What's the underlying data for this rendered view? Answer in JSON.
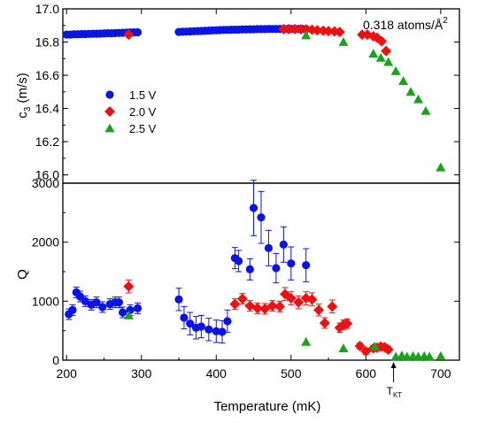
{
  "chart_data": [
    {
      "type": "scatter",
      "ylabel_main": "c",
      "ylabel_sub": "3",
      "ylabel_unit": " (m/s)",
      "ylim": [
        15.95,
        17.0
      ],
      "yticks": [
        "16.0",
        "16.2",
        "16.4",
        "16.6",
        "16.8",
        "17.0"
      ],
      "annotation": {
        "main": "0.318 atoms/Å",
        "sup": "2"
      },
      "legend_position": "middle-left",
      "series": [
        {
          "name": "1.5 V",
          "color": "#0a14e6",
          "marker": "circle",
          "points": [
            [
              200,
              16.845
            ],
            [
              205,
              16.845
            ],
            [
              210,
              16.847
            ],
            [
              215,
              16.847
            ],
            [
              220,
              16.848
            ],
            [
              225,
              16.848
            ],
            [
              230,
              16.849
            ],
            [
              235,
              16.85
            ],
            [
              240,
              16.85
            ],
            [
              245,
              16.851
            ],
            [
              250,
              16.852
            ],
            [
              255,
              16.853
            ],
            [
              260,
              16.853
            ],
            [
              265,
              16.854
            ],
            [
              270,
              16.855
            ],
            [
              275,
              16.856
            ],
            [
              280,
              16.857
            ],
            [
              285,
              16.858
            ],
            [
              290,
              16.858
            ],
            [
              295,
              16.859
            ],
            [
              350,
              16.861
            ],
            [
              355,
              16.862
            ],
            [
              360,
              16.863
            ],
            [
              365,
              16.864
            ],
            [
              370,
              16.865
            ],
            [
              375,
              16.866
            ],
            [
              380,
              16.867
            ],
            [
              385,
              16.868
            ],
            [
              390,
              16.869
            ],
            [
              395,
              16.87
            ],
            [
              400,
              16.871
            ],
            [
              405,
              16.872
            ],
            [
              410,
              16.873
            ],
            [
              415,
              16.873
            ],
            [
              420,
              16.874
            ],
            [
              425,
              16.875
            ],
            [
              430,
              16.875
            ],
            [
              435,
              16.876
            ],
            [
              440,
              16.876
            ],
            [
              445,
              16.877
            ],
            [
              450,
              16.877
            ],
            [
              455,
              16.878
            ],
            [
              460,
              16.878
            ],
            [
              465,
              16.878
            ],
            [
              470,
              16.879
            ],
            [
              475,
              16.879
            ],
            [
              480,
              16.879
            ],
            [
              485,
              16.879
            ],
            [
              490,
              16.879
            ],
            [
              495,
              16.879
            ],
            [
              500,
              16.879
            ],
            [
              505,
              16.879
            ],
            [
              510,
              16.879
            ],
            [
              515,
              16.879
            ],
            [
              520,
              16.878
            ]
          ]
        },
        {
          "name": "2.0 V",
          "color": "#ee1111",
          "marker": "diamond",
          "points": [
            [
              283,
              16.845
            ],
            [
              490,
              16.878
            ],
            [
              497,
              16.878
            ],
            [
              505,
              16.878
            ],
            [
              513,
              16.877
            ],
            [
              520,
              16.876
            ],
            [
              528,
              16.874
            ],
            [
              535,
              16.871
            ],
            [
              543,
              16.868
            ],
            [
              550,
              16.866
            ],
            [
              558,
              16.864
            ],
            [
              565,
              16.861
            ],
            [
              595,
              16.845
            ],
            [
              602,
              16.845
            ],
            [
              610,
              16.835
            ],
            [
              615,
              16.826
            ],
            [
              621,
              16.805
            ],
            [
              627,
              16.746
            ]
          ]
        },
        {
          "name": "2.5 V",
          "color": "#1aa31a",
          "marker": "triangle",
          "points": [
            [
              520,
              16.84
            ],
            [
              570,
              16.8
            ],
            [
              610,
              16.73
            ],
            [
              620,
              16.705
            ],
            [
              630,
              16.68
            ],
            [
              640,
              16.625
            ],
            [
              650,
              16.565
            ],
            [
              660,
              16.5
            ],
            [
              670,
              16.455
            ],
            [
              680,
              16.385
            ],
            [
              700,
              16.045
            ]
          ]
        }
      ]
    },
    {
      "type": "scatter",
      "ylabel": "Q",
      "xlabel": "Temperature (mK)",
      "xlim": [
        195,
        725
      ],
      "xticks": [
        "200",
        "300",
        "400",
        "500",
        "600",
        "700"
      ],
      "ylim": [
        0,
        3000
      ],
      "yticks": [
        "0",
        "1000",
        "2000",
        "3000"
      ],
      "marker_label": {
        "main": "T",
        "sub": "KT",
        "x": 637
      },
      "series": [
        {
          "name": "1.5 V",
          "color": "#0a14e6",
          "marker": "circle",
          "points": [
            [
              203,
              780,
              90
            ],
            [
              208,
              850,
              90
            ],
            [
              213,
              1150,
              90
            ],
            [
              218,
              1080,
              90
            ],
            [
              225,
              1000,
              90
            ],
            [
              233,
              940,
              90
            ],
            [
              240,
              980,
              90
            ],
            [
              248,
              900,
              90
            ],
            [
              258,
              950,
              90
            ],
            [
              265,
              980,
              90
            ],
            [
              270,
              980,
              90
            ],
            [
              275,
              810,
              90
            ],
            [
              285,
              850,
              90
            ],
            [
              295,
              880,
              90
            ],
            [
              350,
              1030,
              190
            ],
            [
              357,
              720,
              190
            ],
            [
              365,
              620,
              190
            ],
            [
              373,
              550,
              190
            ],
            [
              380,
              570,
              190
            ],
            [
              390,
              520,
              190
            ],
            [
              400,
              490,
              190
            ],
            [
              408,
              480,
              190
            ],
            [
              415,
              660,
              190
            ],
            [
              425,
              1730,
              180
            ],
            [
              430,
              1680,
              180
            ],
            [
              445,
              1540,
              180
            ],
            [
              450,
              2580,
              470
            ],
            [
              460,
              2420,
              440
            ],
            [
              470,
              1900,
              300
            ],
            [
              480,
              1560,
              250
            ],
            [
              490,
              1960,
              300
            ],
            [
              500,
              1640,
              280
            ],
            [
              520,
              1610,
              280
            ]
          ]
        },
        {
          "name": "2.0 V",
          "color": "#ee1111",
          "marker": "diamond",
          "points": [
            [
              283,
              1250,
              110
            ],
            [
              425,
              950,
              90
            ],
            [
              435,
              1040,
              90
            ],
            [
              445,
              920,
              90
            ],
            [
              455,
              880,
              90
            ],
            [
              465,
              870,
              90
            ],
            [
              475,
              920,
              90
            ],
            [
              485,
              910,
              90
            ],
            [
              492,
              1120,
              110
            ],
            [
              500,
              1050,
              110
            ],
            [
              510,
              980,
              110
            ],
            [
              520,
              1050,
              110
            ],
            [
              528,
              1030,
              110
            ],
            [
              537,
              850,
              100
            ],
            [
              545,
              630,
              90
            ],
            [
              555,
              910,
              110
            ],
            [
              565,
              550,
              80
            ],
            [
              570,
              600,
              80
            ],
            [
              575,
              620,
              80
            ],
            [
              592,
              240,
              50
            ],
            [
              600,
              150,
              50
            ],
            [
              610,
              200,
              50
            ],
            [
              615,
              210,
              50
            ],
            [
              620,
              230,
              50
            ],
            [
              625,
              220,
              50
            ],
            [
              630,
              180,
              50
            ]
          ]
        },
        {
          "name": "2.5 V",
          "color": "#1aa31a",
          "marker": "triangle",
          "points": [
            [
              283,
              760,
              0
            ],
            [
              520,
              310,
              0
            ],
            [
              570,
              200,
              0
            ],
            [
              612,
              230,
              0
            ],
            [
              640,
              60,
              0
            ],
            [
              648,
              80,
              0
            ],
            [
              655,
              60,
              0
            ],
            [
              663,
              70,
              0
            ],
            [
              670,
              60,
              0
            ],
            [
              678,
              70,
              0
            ],
            [
              685,
              60,
              0
            ],
            [
              700,
              70,
              0
            ]
          ]
        }
      ]
    }
  ]
}
